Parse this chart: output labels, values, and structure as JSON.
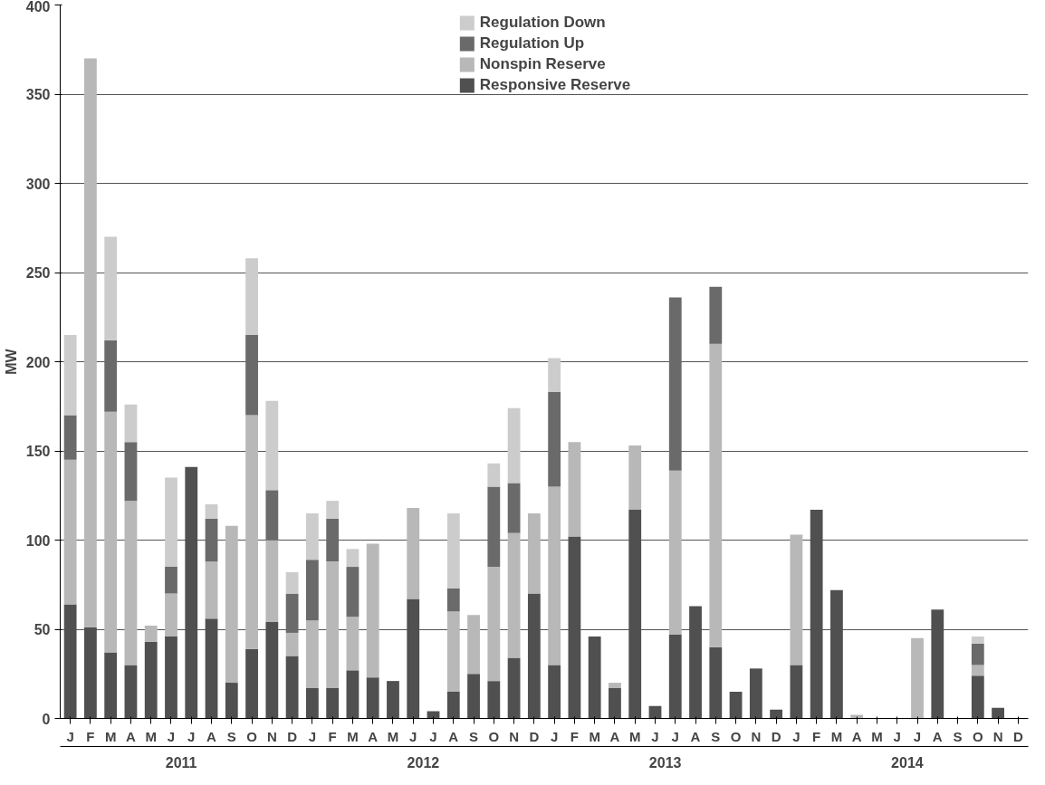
{
  "chart_data": {
    "type": "bar",
    "stacked": true,
    "ylabel": "MW",
    "categories": [
      "J",
      "F",
      "M",
      "A",
      "M",
      "J",
      "J",
      "A",
      "S",
      "O",
      "N",
      "D",
      "J",
      "F",
      "M",
      "A",
      "M",
      "J",
      "J",
      "A",
      "S",
      "O",
      "N",
      "D",
      "J",
      "F",
      "M",
      "A",
      "M",
      "J",
      "J",
      "A",
      "S",
      "O",
      "N",
      "D",
      "J",
      "F",
      "M",
      "A",
      "M",
      "J",
      "J",
      "A",
      "S",
      "O",
      "N",
      "D"
    ],
    "series": [
      {
        "name": "Responsive Reserve",
        "color": "#505050",
        "values": [
          64,
          51,
          37,
          30,
          43,
          46,
          141,
          56,
          20,
          39,
          54,
          35,
          17,
          17,
          27,
          23,
          21,
          67,
          4,
          15,
          25,
          21,
          34,
          70,
          30,
          102,
          46,
          17,
          117,
          7,
          47,
          63,
          40,
          15,
          28,
          5,
          30,
          117,
          72,
          0,
          0,
          0,
          0,
          61,
          0,
          24,
          6,
          0
        ]
      },
      {
        "name": "Nonspin Reserve",
        "color": "#b8b8b8",
        "values": [
          81,
          319,
          135,
          92,
          9,
          24,
          0,
          32,
          88,
          131,
          46,
          13,
          38,
          71,
          30,
          75,
          0,
          51,
          0,
          45,
          33,
          64,
          70,
          45,
          100,
          53,
          0,
          3,
          36,
          0,
          92,
          0,
          170,
          0,
          0,
          0,
          73,
          0,
          0,
          2,
          0,
          0,
          45,
          0,
          0,
          6,
          0,
          0
        ]
      },
      {
        "name": "Regulation Up",
        "color": "#6a6a6a",
        "values": [
          25,
          0,
          40,
          33,
          0,
          15,
          0,
          24,
          0,
          45,
          28,
          22,
          34,
          24,
          28,
          0,
          0,
          0,
          0,
          13,
          0,
          45,
          28,
          0,
          53,
          0,
          0,
          0,
          0,
          0,
          97,
          0,
          32,
          0,
          0,
          0,
          0,
          0,
          0,
          0,
          0,
          0,
          0,
          0,
          0,
          12,
          0,
          0
        ]
      },
      {
        "name": "Regulation Down",
        "color": "#cccccc",
        "values": [
          45,
          0,
          58,
          21,
          0,
          50,
          0,
          8,
          0,
          43,
          50,
          12,
          26,
          10,
          10,
          0,
          0,
          0,
          0,
          42,
          0,
          13,
          42,
          0,
          19,
          0,
          0,
          0,
          0,
          0,
          0,
          0,
          0,
          0,
          0,
          0,
          0,
          0,
          0,
          0,
          0,
          0,
          0,
          0,
          0,
          4,
          0,
          0
        ]
      }
    ],
    "ylim": [
      0,
      400
    ],
    "yticks": [
      0,
      50,
      100,
      150,
      200,
      250,
      300,
      350,
      400
    ],
    "grid": "y",
    "legend": "top",
    "annotations": [
      "2011",
      "2012",
      "2013",
      "2014"
    ]
  }
}
